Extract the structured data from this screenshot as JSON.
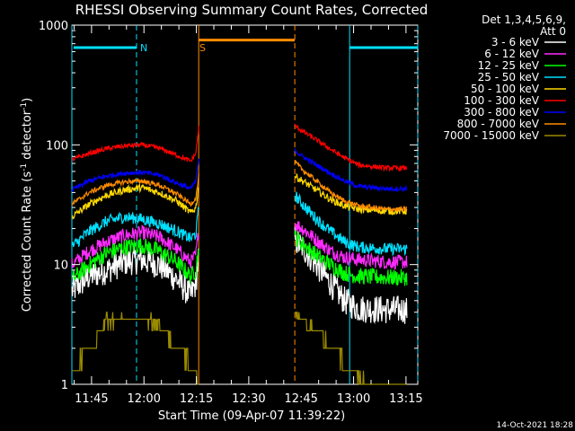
{
  "chart_data": {
    "type": "line",
    "title": "RHESSI Observing Summary Count Rates, Corrected",
    "xlabel": "Start Time (09-Apr-07 11:39:22)",
    "ylabel": "Corrected Count Rate (s⁻¹ detector⁻¹)",
    "ylabel_parts": [
      "Corrected Count Rate (s",
      "-1",
      " detector",
      "-1",
      ")"
    ],
    "yscale": "log",
    "ylim": [
      1,
      1000
    ],
    "xlim_minutes": [
      0,
      99
    ],
    "xticks": [
      {
        "label": "11:45",
        "min": 5.63
      },
      {
        "label": "12:00",
        "min": 20.63
      },
      {
        "label": "12:15",
        "min": 35.63
      },
      {
        "label": "12:30",
        "min": 50.63
      },
      {
        "label": "12:45",
        "min": 65.63
      },
      {
        "label": "13:00",
        "min": 80.63
      },
      {
        "label": "13:15",
        "min": 95.63
      }
    ],
    "yticks": [
      {
        "label": "1",
        "v": 1
      },
      {
        "label": "10",
        "v": 10
      },
      {
        "label": "100",
        "v": 100
      },
      {
        "label": "1000",
        "v": 1000
      }
    ],
    "legend_header": [
      "Det 1,3,4,5,6,9,",
      "Att 0"
    ],
    "legend_position": "right",
    "footer": "14-Oct-2021 18:28",
    "annotations": [
      {
        "label": "N",
        "color": "#00e0ff",
        "x_min": 18.5
      },
      {
        "label": "S",
        "color": "#ff8c00",
        "x_min": 35.5
      }
    ],
    "night_markers": [
      {
        "color": "#00e0ff",
        "line_min": 0.0,
        "style": "solid"
      },
      {
        "color": "#00e0ff",
        "line_min": 18.5,
        "style": "dashed"
      },
      {
        "color": "#00e0ff",
        "line_min": 79.5,
        "style": "solid"
      },
      {
        "color": "#00e0ff",
        "line_min": 99.0,
        "style": "dashed"
      },
      {
        "color": "#ff8c00",
        "line_min": 36.3,
        "style": "solid"
      },
      {
        "color": "#ff8c00",
        "line_min": 63.8,
        "style": "dashed"
      }
    ],
    "bars": [
      {
        "color": "#00e0ff",
        "from_min": 0.5,
        "to_min": 18.5,
        "y_value": 650
      },
      {
        "color": "#ff8c00",
        "from_min": 36.3,
        "to_min": 63.8,
        "y_value": 750
      },
      {
        "color": "#00e0ff",
        "from_min": 79.5,
        "to_min": 99.0,
        "y_value": 650
      }
    ],
    "series": [
      {
        "name": "3 - 6 keV",
        "color": "#ffffff",
        "seg1": [
          [
            0,
            6
          ],
          [
            5,
            8
          ],
          [
            10,
            9
          ],
          [
            15,
            10.5
          ],
          [
            20,
            11
          ],
          [
            25,
            10
          ],
          [
            30,
            7.5
          ],
          [
            34,
            5.5
          ],
          [
            35.5,
            7
          ],
          [
            36.3,
            12
          ]
        ],
        "seg2": [
          [
            63.8,
            16
          ],
          [
            66,
            14
          ],
          [
            70,
            10
          ],
          [
            74,
            7
          ],
          [
            78,
            5
          ],
          [
            82,
            4.3
          ],
          [
            90,
            4.2
          ],
          [
            96,
            4.2
          ]
        ],
        "jitter": 0.12
      },
      {
        "name": "6 - 12 keV",
        "color": "#ff2bff",
        "seg1": [
          [
            0,
            10
          ],
          [
            5,
            13
          ],
          [
            10,
            15.5
          ],
          [
            15,
            17.5
          ],
          [
            20,
            18.5
          ],
          [
            25,
            17
          ],
          [
            30,
            13.5
          ],
          [
            34,
            10.5
          ],
          [
            35.5,
            12
          ],
          [
            36.3,
            20
          ]
        ],
        "seg2": [
          [
            63.8,
            22
          ],
          [
            66,
            20
          ],
          [
            70,
            16
          ],
          [
            74,
            13
          ],
          [
            78,
            11.5
          ],
          [
            82,
            11
          ],
          [
            90,
            10.5
          ],
          [
            96,
            10.5
          ]
        ],
        "jitter": 0.06
      },
      {
        "name": "12 - 25 keV",
        "color": "#00ff00",
        "seg1": [
          [
            0,
            7.5
          ],
          [
            5,
            10
          ],
          [
            10,
            12.5
          ],
          [
            15,
            14
          ],
          [
            20,
            14.5
          ],
          [
            25,
            13
          ],
          [
            30,
            10.5
          ],
          [
            34,
            8
          ],
          [
            35.5,
            9
          ],
          [
            36.3,
            14
          ]
        ],
        "seg2": [
          [
            63.8,
            17
          ],
          [
            66,
            15
          ],
          [
            70,
            12
          ],
          [
            74,
            10
          ],
          [
            78,
            8.5
          ],
          [
            82,
            8
          ],
          [
            90,
            7.8
          ],
          [
            96,
            7.8
          ]
        ],
        "jitter": 0.07
      },
      {
        "name": "25 - 50 keV",
        "color": "#00e0ff",
        "seg1": [
          [
            0,
            14
          ],
          [
            5,
            19
          ],
          [
            10,
            23
          ],
          [
            15,
            25
          ],
          [
            20,
            24
          ],
          [
            25,
            22
          ],
          [
            30,
            19
          ],
          [
            34,
            16.5
          ],
          [
            35.5,
            18
          ],
          [
            36.3,
            30
          ]
        ],
        "seg2": [
          [
            63.8,
            38
          ],
          [
            66,
            32
          ],
          [
            70,
            24
          ],
          [
            74,
            19
          ],
          [
            78,
            15.5
          ],
          [
            82,
            14
          ],
          [
            90,
            13.5
          ],
          [
            96,
            13.5
          ]
        ],
        "jitter": 0.05
      },
      {
        "name": "50 - 100 keV",
        "color": "#ffd900",
        "seg1": [
          [
            0,
            25
          ],
          [
            5,
            32
          ],
          [
            10,
            38
          ],
          [
            15,
            42
          ],
          [
            20,
            44
          ],
          [
            25,
            40
          ],
          [
            30,
            34
          ],
          [
            34,
            27
          ],
          [
            35.5,
            30
          ],
          [
            36.3,
            45
          ]
        ],
        "seg2": [
          [
            63.8,
            55
          ],
          [
            66,
            50
          ],
          [
            70,
            42
          ],
          [
            74,
            35
          ],
          [
            78,
            31
          ],
          [
            82,
            29
          ],
          [
            90,
            28
          ],
          [
            96,
            28
          ]
        ],
        "jitter": 0.03
      },
      {
        "name": "100 - 300 keV",
        "color": "#ff0000",
        "seg1": [
          [
            0,
            75
          ],
          [
            5,
            85
          ],
          [
            10,
            93
          ],
          [
            15,
            98
          ],
          [
            20,
            100
          ],
          [
            25,
            94
          ],
          [
            30,
            82
          ],
          [
            34,
            73
          ],
          [
            35.5,
            85
          ],
          [
            36.3,
            140
          ]
        ],
        "seg2": [
          [
            63.8,
            145
          ],
          [
            66,
            130
          ],
          [
            70,
            110
          ],
          [
            74,
            92
          ],
          [
            78,
            78
          ],
          [
            82,
            68
          ],
          [
            90,
            64
          ],
          [
            96,
            64
          ]
        ],
        "jitter": 0.02
      },
      {
        "name": "300 - 800 keV",
        "color": "#0000ff",
        "seg1": [
          [
            0,
            42
          ],
          [
            5,
            50
          ],
          [
            10,
            55
          ],
          [
            15,
            58
          ],
          [
            20,
            59
          ],
          [
            25,
            56
          ],
          [
            30,
            48
          ],
          [
            34,
            43
          ],
          [
            35.5,
            50
          ],
          [
            36.3,
            75
          ]
        ],
        "seg2": [
          [
            63.8,
            90
          ],
          [
            66,
            80
          ],
          [
            70,
            68
          ],
          [
            74,
            58
          ],
          [
            78,
            50
          ],
          [
            82,
            45
          ],
          [
            90,
            43
          ],
          [
            96,
            43
          ]
        ],
        "jitter": 0.02
      },
      {
        "name": "800 - 7000 keV",
        "color": "#ff8c00",
        "seg1": [
          [
            0,
            32
          ],
          [
            5,
            40
          ],
          [
            10,
            46
          ],
          [
            15,
            49
          ],
          [
            20,
            50
          ],
          [
            25,
            46
          ],
          [
            30,
            39
          ],
          [
            34,
            32
          ],
          [
            35.5,
            36
          ],
          [
            36.3,
            55
          ]
        ],
        "seg2": [
          [
            63.8,
            72
          ],
          [
            66,
            62
          ],
          [
            70,
            50
          ],
          [
            74,
            40
          ],
          [
            78,
            34
          ],
          [
            82,
            31
          ],
          [
            90,
            29
          ],
          [
            96,
            29
          ]
        ],
        "jitter": 0.02
      },
      {
        "name": "7000 - 15000 keV",
        "color": "#9a8a00",
        "seg1": [
          [
            0,
            1.3
          ],
          [
            5,
            2
          ],
          [
            10,
            3.2
          ],
          [
            15,
            3.5
          ],
          [
            20,
            3.5
          ],
          [
            25,
            3
          ],
          [
            30,
            2
          ],
          [
            34,
            1.5
          ],
          [
            35.5,
            1.3
          ],
          [
            36.3,
            1
          ]
        ],
        "seg2": [
          [
            63.8,
            4
          ],
          [
            66,
            3.5
          ],
          [
            70,
            2.8
          ],
          [
            74,
            2
          ],
          [
            78,
            1.5
          ],
          [
            82,
            1.1
          ],
          [
            90,
            1
          ],
          [
            96,
            1
          ]
        ],
        "jitter": 0.0,
        "step": true
      }
    ]
  }
}
